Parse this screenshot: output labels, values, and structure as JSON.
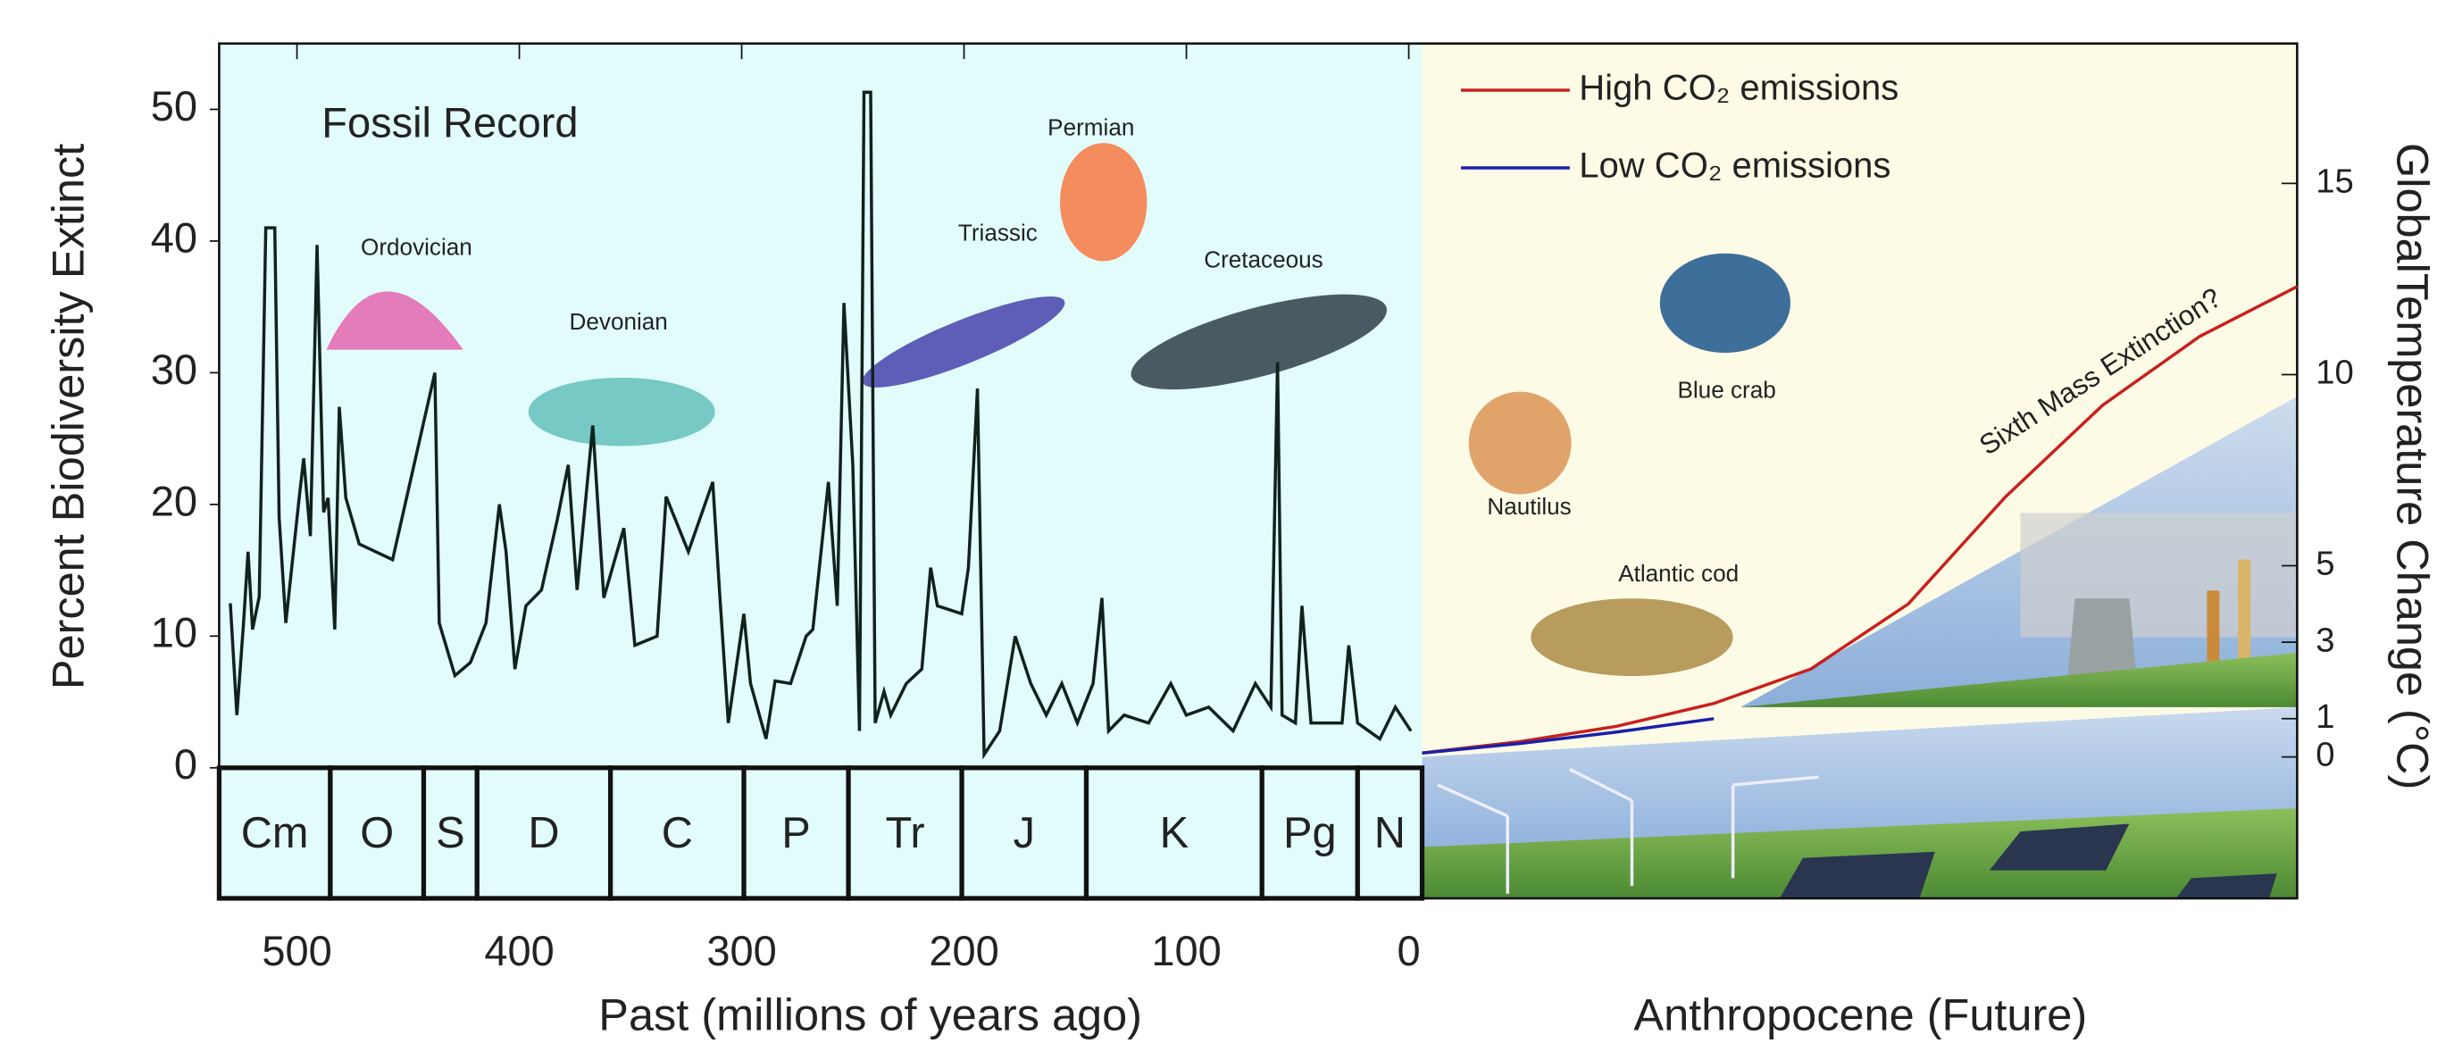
{
  "chart_data": {
    "type": "line",
    "ylabel": "Percent Biodiversity Extinct",
    "xlabel": "Past (millions of years ago)",
    "x2label": "Anthropocene (Future)",
    "y2label": "GlobalTemperature Change (°C)",
    "xlim": [
      535,
      -6
    ],
    "xticks": [
      500,
      400,
      300,
      200,
      100,
      0
    ],
    "ylim": [
      0,
      55
    ],
    "yticks": [
      0,
      10,
      20,
      30,
      40,
      50
    ],
    "y2lim": [
      -3.7,
      18.66
    ],
    "y2ticks": [
      0,
      1,
      3,
      5,
      10,
      15
    ],
    "fossil": {
      "name": "Fossil Record",
      "color": "#10221c",
      "x": [
        530,
        527,
        524,
        522,
        520,
        517,
        514,
        510,
        508,
        505,
        499,
        497,
        494,
        491,
        488,
        486,
        483,
        481,
        478,
        472,
        457,
        438,
        436,
        429,
        422,
        415,
        409,
        406,
        402,
        397,
        390,
        383,
        378,
        374,
        367,
        362,
        353,
        348,
        338,
        334,
        324,
        313,
        310,
        306,
        299,
        296,
        289,
        285,
        278,
        271,
        268,
        261,
        257,
        254,
        250,
        247,
        245,
        242,
        240,
        236,
        233,
        226,
        219,
        215,
        212,
        201,
        198,
        194,
        191,
        184,
        177,
        170,
        163,
        156,
        149,
        142,
        138,
        135,
        128,
        117,
        107,
        100,
        90,
        79,
        69,
        62,
        59,
        57,
        51,
        48,
        44,
        30,
        27,
        23,
        13,
        6,
        -1
      ],
      "values": [
        12.5,
        4,
        11,
        16.4,
        10.5,
        13,
        41,
        41,
        19,
        11,
        20.5,
        23.5,
        17.6,
        39.7,
        19.4,
        20.5,
        10.5,
        27.4,
        20.5,
        17,
        15.8,
        30,
        11,
        7,
        8,
        11,
        20,
        16.4,
        7.5,
        12.3,
        13.5,
        18.8,
        23,
        13.5,
        26,
        12.9,
        18.2,
        9.3,
        10,
        20.6,
        16.4,
        21.7,
        13.5,
        3.4,
        11.7,
        6.4,
        2.2,
        6.6,
        6.4,
        10,
        10.5,
        21.7,
        12.3,
        35.3,
        23,
        2.8,
        51.3,
        51.3,
        3.4,
        5.8,
        4,
        6.4,
        7.5,
        15.2,
        12.3,
        11.7,
        15.2,
        28.8,
        1,
        2.8,
        10,
        6.4,
        4,
        6.4,
        3.4,
        6.4,
        12.9,
        2.8,
        4,
        3.4,
        6.4,
        4,
        4.6,
        2.8,
        6.4,
        4.6,
        30.8,
        4,
        3.4,
        12.3,
        3.4,
        3.4,
        9.3,
        3.4,
        2.2,
        4.6,
        2.8
      ]
    },
    "periods": [
      "Cm",
      "O",
      "S",
      "D",
      "C",
      "P",
      "Tr",
      "J",
      "K",
      "Pg",
      "N"
    ],
    "period_bounds": [
      541,
      485,
      443,
      419,
      359,
      299,
      252,
      201,
      145,
      66,
      23,
      -6
    ],
    "future_categories": [
      null,
      null,
      null,
      null,
      null,
      null,
      null,
      null,
      null,
      null
    ],
    "series": [
      {
        "name": "High CO₂ emissions",
        "color": "#c8201e",
        "axis": "y2",
        "values": [
          0.1,
          0.4,
          0.8,
          1.4,
          2.3,
          4,
          6.8,
          9.2,
          11,
          12.3
        ]
      },
      {
        "name": "Low CO₂ emissions",
        "color": "#1a20a8",
        "axis": "y2",
        "values": [
          0.1,
          0.35,
          0.65,
          1.0,
          null,
          null,
          null,
          null,
          null,
          null
        ]
      }
    ],
    "annotations": [
      "Ordovician",
      "Devonian",
      "Triassic",
      "Permian",
      "Cretaceous",
      "Blue crab",
      "Nautilus",
      "Atlantic cod",
      "Sixth Mass Extinction?"
    ],
    "legend": "upper left"
  }
}
